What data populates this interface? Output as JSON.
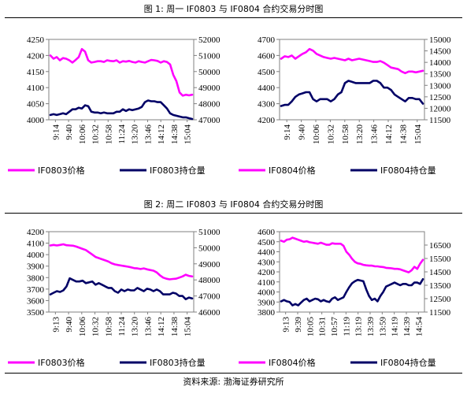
{
  "figure1": {
    "title": "图 1:  周一 IF0803 与 IF0804 合约交易分时图"
  },
  "figure2": {
    "title": "图 2:  周二 IF0803 与 IF0804 合约交易分时图"
  },
  "source": "资料来源:  渤海证券研究所",
  "colors": {
    "price": "#ff00ff",
    "position": "#000066"
  },
  "chart_data": [
    {
      "type": "line",
      "x_ticks": [
        "9:14",
        "9:40",
        "10:06",
        "10:32",
        "10:58",
        "11:24",
        "13:20",
        "13:46",
        "14:12",
        "14:38",
        "15:04"
      ],
      "ylim_left": [
        4000,
        4250
      ],
      "yticks_left": [
        4000,
        4050,
        4100,
        4150,
        4200,
        4250
      ],
      "ylim_right": [
        47000,
        52000
      ],
      "yticks_right": [
        47000,
        48000,
        49000,
        50000,
        51000,
        52000
      ],
      "series": [
        {
          "name": "IF0803价格",
          "axis": "left",
          "color": "#ff00ff",
          "values": [
            4200,
            4190,
            4195,
            4185,
            4192,
            4190,
            4185,
            4178,
            4186,
            4195,
            4220,
            4212,
            4185,
            4178,
            4180,
            4182,
            4182,
            4180,
            4185,
            4183,
            4182,
            4185,
            4178,
            4182,
            4181,
            4183,
            4180,
            4178,
            4182,
            4180,
            4178,
            4182,
            4186,
            4185,
            4183,
            4178,
            4182,
            4180,
            4172,
            4140,
            4120,
            4085,
            4075,
            4078,
            4076,
            4078
          ]
        },
        {
          "name": "IF0803持仓量",
          "axis": "right",
          "color": "#000066",
          "values": [
            47300,
            47350,
            47300,
            47350,
            47400,
            47350,
            47500,
            47650,
            47650,
            47750,
            47700,
            47900,
            47850,
            47500,
            47450,
            47450,
            47400,
            47450,
            47400,
            47400,
            47400,
            47500,
            47500,
            47650,
            47550,
            47650,
            47600,
            47650,
            47700,
            47800,
            48100,
            48200,
            48150,
            48150,
            48100,
            48100,
            47900,
            47700,
            47400,
            47300,
            47250,
            47200,
            47150,
            47150,
            47100,
            47050
          ]
        }
      ]
    },
    {
      "type": "line",
      "x_ticks": [
        "9:14",
        "9:40",
        "10:06",
        "10:32",
        "10:58",
        "13:20",
        "13:46",
        "14:12",
        "14:38",
        "15:04"
      ],
      "ylim_left": [
        4200,
        4700
      ],
      "yticks_left": [
        4200,
        4300,
        4400,
        4500,
        4600,
        4700
      ],
      "ylim_right": [
        11500,
        15000
      ],
      "yticks_right": [
        11500,
        12000,
        12500,
        13000,
        13500,
        14000,
        14500,
        15000
      ],
      "series": [
        {
          "name": "IF0804价格",
          "axis": "left",
          "color": "#ff00ff",
          "values": [
            4580,
            4595,
            4590,
            4600,
            4580,
            4595,
            4610,
            4620,
            4640,
            4630,
            4610,
            4600,
            4590,
            4585,
            4580,
            4585,
            4580,
            4575,
            4570,
            4580,
            4570,
            4575,
            4580,
            4575,
            4570,
            4565,
            4560,
            4560,
            4565,
            4555,
            4540,
            4525,
            4520,
            4515,
            4500,
            4490,
            4500,
            4500,
            4495,
            4500,
            4505
          ]
        },
        {
          "name": "IF0804持仓量",
          "axis": "right",
          "color": "#000066",
          "values": [
            12100,
            12150,
            12150,
            12300,
            12500,
            12600,
            12650,
            12700,
            12700,
            12400,
            12300,
            12400,
            12400,
            12400,
            12300,
            12400,
            12600,
            12700,
            13100,
            13200,
            13150,
            13100,
            13100,
            13100,
            13100,
            13100,
            13200,
            13200,
            13100,
            12900,
            12900,
            12800,
            12600,
            12500,
            12400,
            12300,
            12450,
            12450,
            12400,
            12400,
            12200
          ]
        }
      ]
    },
    {
      "type": "line",
      "x_ticks": [
        "9:13",
        "9:40",
        "10:06",
        "10:32",
        "10:58",
        "11:24",
        "13:20",
        "13:46",
        "14:12",
        "14:38",
        "15:04"
      ],
      "ylim_left": [
        3500,
        4200
      ],
      "yticks_left": [
        3500,
        3600,
        3700,
        3800,
        3900,
        4000,
        4100,
        4200
      ],
      "ylim_right": [
        46000,
        51000
      ],
      "yticks_right": [
        46000,
        47000,
        48000,
        49000,
        50000,
        51000
      ],
      "series": [
        {
          "name": "IF0803价格",
          "axis": "left",
          "color": "#ff00ff",
          "values": [
            4080,
            4085,
            4080,
            4085,
            4090,
            4082,
            4080,
            4078,
            4070,
            4060,
            4050,
            4040,
            4020,
            4000,
            3980,
            3970,
            3960,
            3950,
            3940,
            3925,
            3915,
            3910,
            3905,
            3900,
            3895,
            3890,
            3882,
            3880,
            3875,
            3880,
            3872,
            3866,
            3860,
            3845,
            3820,
            3800,
            3790,
            3785,
            3788,
            3790,
            3800,
            3810,
            3825,
            3815,
            3810
          ]
        },
        {
          "name": "IF0803持仓量",
          "axis": "right",
          "color": "#000066",
          "values": [
            47100,
            47200,
            47300,
            47250,
            47350,
            47600,
            48100,
            48000,
            47900,
            47900,
            47950,
            47800,
            47850,
            47900,
            47700,
            47800,
            47700,
            47600,
            47500,
            47500,
            47300,
            47200,
            47400,
            47300,
            47400,
            47350,
            47350,
            47500,
            47400,
            47300,
            47450,
            47400,
            47300,
            47400,
            47300,
            47100,
            47100,
            47100,
            47200,
            47150,
            47000,
            47000,
            46800,
            46900,
            46850
          ]
        }
      ]
    },
    {
      "type": "line",
      "x_ticks": [
        "9:13",
        "9:39",
        "10:05",
        "10:31",
        "10:57",
        "11:19",
        "13:19",
        "13:39",
        "13:59",
        "14:19",
        "14:39",
        "14:54"
      ],
      "ylim_left": [
        3800,
        4600
      ],
      "yticks_left": [
        3800,
        3900,
        4000,
        4100,
        4200,
        4300,
        4400,
        4500,
        4600
      ],
      "ylim_right": [
        11500,
        17500
      ],
      "yticks_right": [
        11500,
        12500,
        13500,
        14500,
        15500,
        16500
      ],
      "series": [
        {
          "name": "IF0804价格",
          "axis": "left",
          "color": "#ff00ff",
          "values": [
            4510,
            4500,
            4520,
            4525,
            4540,
            4530,
            4520,
            4510,
            4500,
            4505,
            4495,
            4490,
            4485,
            4480,
            4490,
            4480,
            4470,
            4470,
            4485,
            4480,
            4480,
            4480,
            4460,
            4400,
            4370,
            4330,
            4300,
            4285,
            4280,
            4270,
            4265,
            4262,
            4262,
            4256,
            4255,
            4250,
            4248,
            4240,
            4238,
            4235,
            4230,
            4230,
            4225,
            4215,
            4205,
            4195,
            4215,
            4250,
            4230,
            4280,
            4320
          ]
        },
        {
          "name": "IF0804持仓量",
          "axis": "right",
          "color": "#000066",
          "values": [
            12300,
            12400,
            12300,
            12250,
            12000,
            12100,
            12000,
            12200,
            12400,
            12500,
            12300,
            12400,
            12500,
            12450,
            12300,
            12400,
            12300,
            12250,
            12500,
            12600,
            12400,
            12500,
            12600,
            13000,
            13350,
            13650,
            13800,
            13900,
            13850,
            13800,
            13200,
            12700,
            12400,
            12500,
            12300,
            12700,
            13000,
            13400,
            13500,
            13600,
            13700,
            13600,
            13500,
            13600,
            13600,
            13500,
            13500,
            13700,
            13700,
            13600,
            13950
          ]
        }
      ]
    }
  ]
}
